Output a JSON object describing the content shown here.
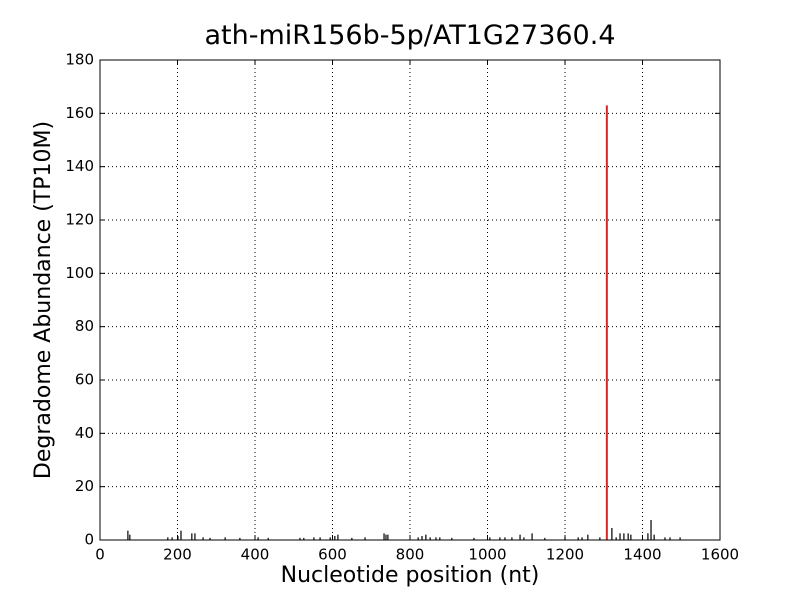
{
  "chart_data": {
    "type": "spike",
    "title": "ath-miR156b-5p/AT1G27360.4",
    "x_label": "Nucleotide position (nt)",
    "y_label": "Degradome Abundance (TP10M)",
    "xlim": [
      0,
      1600
    ],
    "ylim": [
      0,
      180
    ],
    "xticks": [
      0,
      200,
      400,
      600,
      800,
      1000,
      1200,
      1400,
      1600
    ],
    "yticks": [
      0,
      20,
      40,
      60,
      80,
      100,
      120,
      140,
      160,
      180
    ],
    "grid": true,
    "series": [
      {
        "color": "#000000",
        "x": [
          72,
          77,
          175,
          186,
          201,
          209,
          237,
          245,
          266,
          284,
          323,
          361,
          408,
          434,
          516,
          526,
          552,
          568,
          594,
          606,
          614,
          650,
          684,
          733,
          738,
          743,
          821,
          831,
          841,
          852,
          867,
          877,
          908,
          965,
          1006,
          1032,
          1045,
          1063,
          1084,
          1094,
          1115,
          1148,
          1200,
          1234,
          1244,
          1259,
          1290,
          1321,
          1332,
          1342,
          1352,
          1363,
          1370,
          1414,
          1422,
          1430,
          1458,
          1471,
          1497
        ],
        "values": [
          3.5,
          2,
          1,
          1,
          1.5,
          3.5,
          2.5,
          2.5,
          1,
          0.8,
          1,
          0.8,
          1,
          0.8,
          0.8,
          0.8,
          1,
          1,
          1,
          1.5,
          2,
          0.8,
          1,
          2.5,
          2,
          2,
          1,
          1.5,
          2,
          1,
          1,
          1,
          0.8,
          0.8,
          1,
          1,
          1,
          1,
          2,
          1,
          2.5,
          0.8,
          1,
          1,
          1,
          2,
          1,
          4.5,
          1,
          2.5,
          2.5,
          2.5,
          2,
          2.5,
          7.5,
          2,
          1,
          1,
          1
        ]
      },
      {
        "color": "#d62728",
        "x": [
          1308
        ],
        "values": [
          163
        ]
      }
    ]
  }
}
